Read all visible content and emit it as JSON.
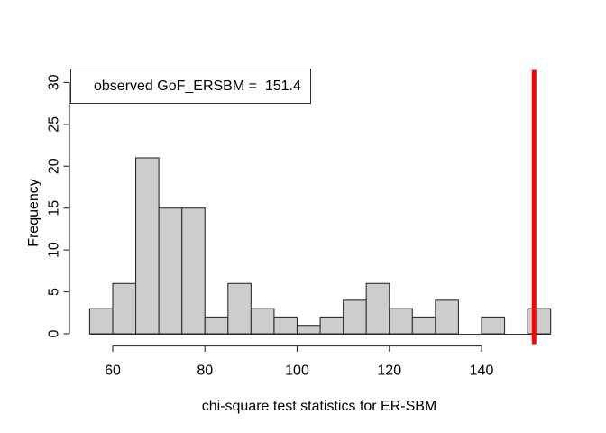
{
  "figure": {
    "background": "#ffffff"
  },
  "chart_data": {
    "type": "bar",
    "subtype": "histogram",
    "title": "",
    "xlabel": "chi-square test statistics for ER-SBM",
    "ylabel": "Frequency",
    "bin_start": 55,
    "bin_width": 5,
    "counts": [
      3,
      6,
      21,
      15,
      15,
      2,
      6,
      3,
      2,
      1,
      2,
      4,
      6,
      3,
      2,
      4,
      0,
      2,
      0,
      3
    ],
    "bin_edges": [
      55,
      60,
      65,
      70,
      75,
      80,
      85,
      90,
      95,
      100,
      105,
      110,
      115,
      120,
      125,
      130,
      135,
      140,
      145,
      150,
      155
    ],
    "x_ticks": [
      60,
      80,
      100,
      120,
      140
    ],
    "y_ticks": [
      0,
      5,
      10,
      15,
      20,
      25,
      30
    ],
    "xlim": [
      55,
      157
    ],
    "ylim": [
      0,
      30
    ],
    "grid": false,
    "legend_position": "top-left",
    "legend_text": "observed GoF_ERSBM =  151.4",
    "observed_value": 151.4,
    "colors": {
      "bar_fill": "#cdcdcd",
      "bar_border": "#2f2f2f",
      "axis": "#383838",
      "tick_text": "#000000",
      "observed_line": "#fe0000"
    }
  }
}
